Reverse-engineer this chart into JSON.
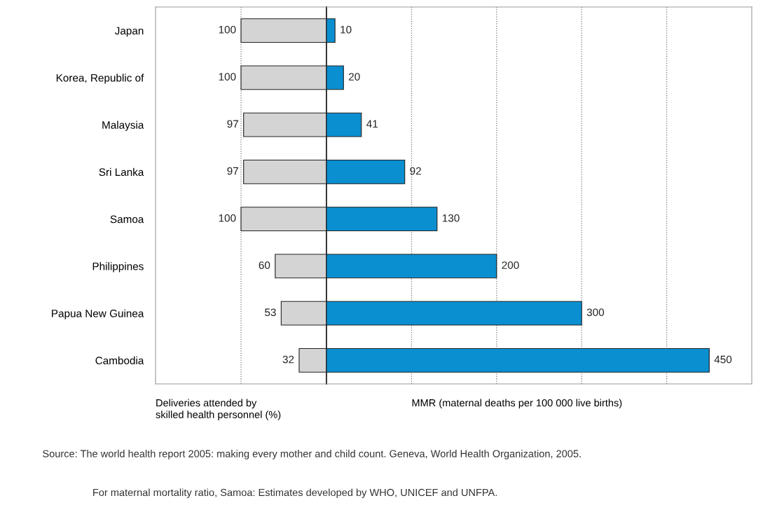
{
  "chart_data": [
    {
      "type": "bar",
      "orientation": "horizontal",
      "categories": [
        "Japan",
        "Korea, Republic of",
        "Malaysia",
        "Sri Lanka",
        "Samoa",
        "Philippines",
        "Papua New Guinea",
        "Cambodia"
      ],
      "series": [
        {
          "color": "#d4d4d4",
          "values": [
            100,
            100,
            97,
            97,
            100,
            60,
            53,
            32
          ]
        }
      ],
      "xlabel": "Deliveries attended by\nskilled health personnel (%)",
      "xlim": [
        200,
        0
      ],
      "xticks": [
        {
          "value": 100,
          "label": null
        }
      ],
      "grid": "x",
      "data_labels": true,
      "tick_labels": "y",
      "annotations": [
        "Source: The world health report 2005: making every mother and child count. Geneva, World Health Organization, 2005.",
        "For maternal mortality ratio, Samoa: Estimates developed by WHO, UNICEF and UNFPA."
      ]
    },
    {
      "type": "bar",
      "orientation": "horizontal",
      "categories": [
        null,
        null,
        null,
        null,
        null,
        null,
        null,
        null
      ],
      "series": [
        {
          "color": "#0a8fd0",
          "values": [
            10,
            20,
            41,
            92,
            130,
            200,
            300,
            450
          ]
        }
      ],
      "xlabel": "MMR (maternal deaths per 100 000 live births)",
      "xlim": [
        0,
        500
      ],
      "xticks": [
        {
          "value": 100,
          "label": null
        },
        {
          "value": 200,
          "label": null
        },
        {
          "value": 300,
          "label": null
        },
        {
          "value": 400,
          "label": null
        }
      ],
      "grid": "x",
      "data_labels": true,
      "tick_labels": false
    }
  ]
}
